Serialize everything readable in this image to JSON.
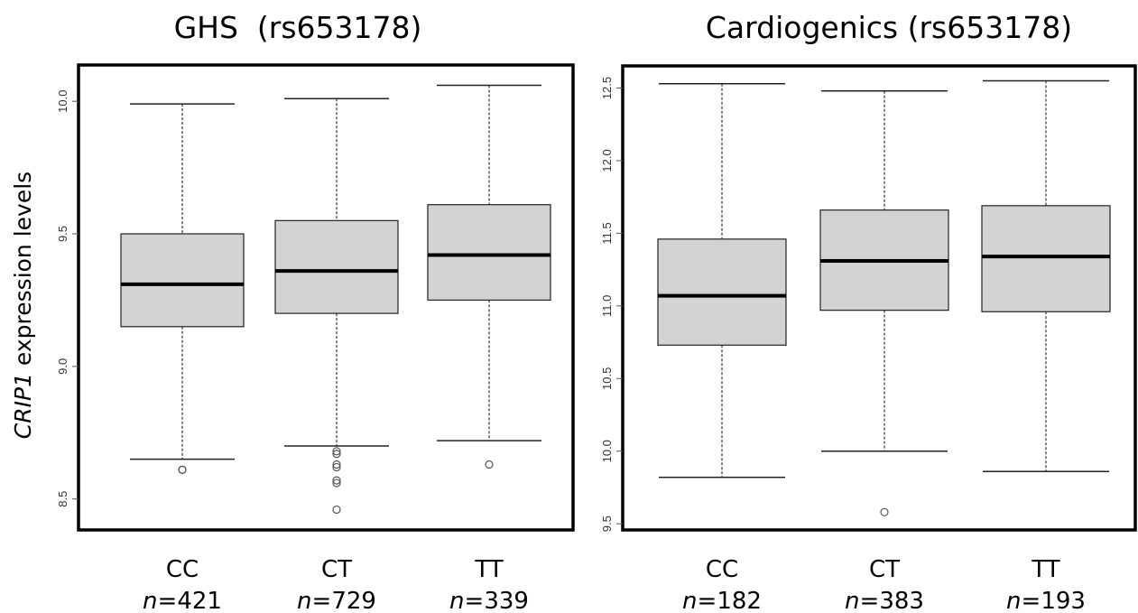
{
  "y_axis_label": {
    "italic": "CRIP1",
    "rest": " expression levels"
  },
  "colors": {
    "box_fill": "#d3d3d3",
    "median": "#000000",
    "frame": "#000000"
  },
  "chart_data": [
    {
      "type": "box",
      "title": "GHS  (rs653178)",
      "ylabel": "CRIP1 expression levels",
      "ylim": [
        8.39,
        10.13
      ],
      "yticks": [
        8.5,
        9.0,
        9.5,
        10.0
      ],
      "ytick_labels": [
        "8.5",
        "9.0",
        "9.5",
        "10.0"
      ],
      "categories": [
        "CC",
        "CT",
        "TT"
      ],
      "n_labels": [
        {
          "prefix": "n",
          "value": "=421"
        },
        {
          "prefix": "n",
          "value": "=729"
        },
        {
          "prefix": "n",
          "value": "=339"
        }
      ],
      "boxes": [
        {
          "category": "CC",
          "whisker_low": 8.65,
          "q1": 9.15,
          "median": 9.31,
          "q3": 9.5,
          "whisker_high": 9.99,
          "outliers": [
            8.61,
            8.61
          ]
        },
        {
          "category": "CT",
          "whisker_low": 8.7,
          "q1": 9.2,
          "median": 9.36,
          "q3": 9.55,
          "whisker_high": 10.01,
          "outliers": [
            8.68,
            8.67,
            8.63,
            8.62,
            8.57,
            8.56,
            8.46
          ]
        },
        {
          "category": "TT",
          "whisker_low": 8.72,
          "q1": 9.25,
          "median": 9.42,
          "q3": 9.61,
          "whisker_high": 10.06,
          "outliers": [
            8.63
          ]
        }
      ]
    },
    {
      "type": "box",
      "title": "Cardiogenics (rs653178)",
      "ylabel": "",
      "ylim": [
        9.47,
        12.64
      ],
      "yticks": [
        9.5,
        10.0,
        10.5,
        11.0,
        11.5,
        12.0,
        12.5
      ],
      "ytick_labels": [
        "9.5",
        "10.0",
        "10.5",
        "11.0",
        "11.5",
        "12.0",
        "12.5"
      ],
      "categories": [
        "CC",
        "CT",
        "TT"
      ],
      "n_labels": [
        {
          "prefix": "n",
          "value": "=182"
        },
        {
          "prefix": "n",
          "value": "=383"
        },
        {
          "prefix": "n",
          "value": "=193"
        }
      ],
      "boxes": [
        {
          "category": "CC",
          "whisker_low": 9.82,
          "q1": 10.73,
          "median": 11.07,
          "q3": 11.46,
          "whisker_high": 12.53,
          "outliers": []
        },
        {
          "category": "CT",
          "whisker_low": 10.0,
          "q1": 10.97,
          "median": 11.31,
          "q3": 11.66,
          "whisker_high": 12.48,
          "outliers": [
            9.58
          ]
        },
        {
          "category": "TT",
          "whisker_low": 9.86,
          "q1": 10.96,
          "median": 11.34,
          "q3": 11.69,
          "whisker_high": 12.55,
          "outliers": []
        }
      ]
    }
  ]
}
